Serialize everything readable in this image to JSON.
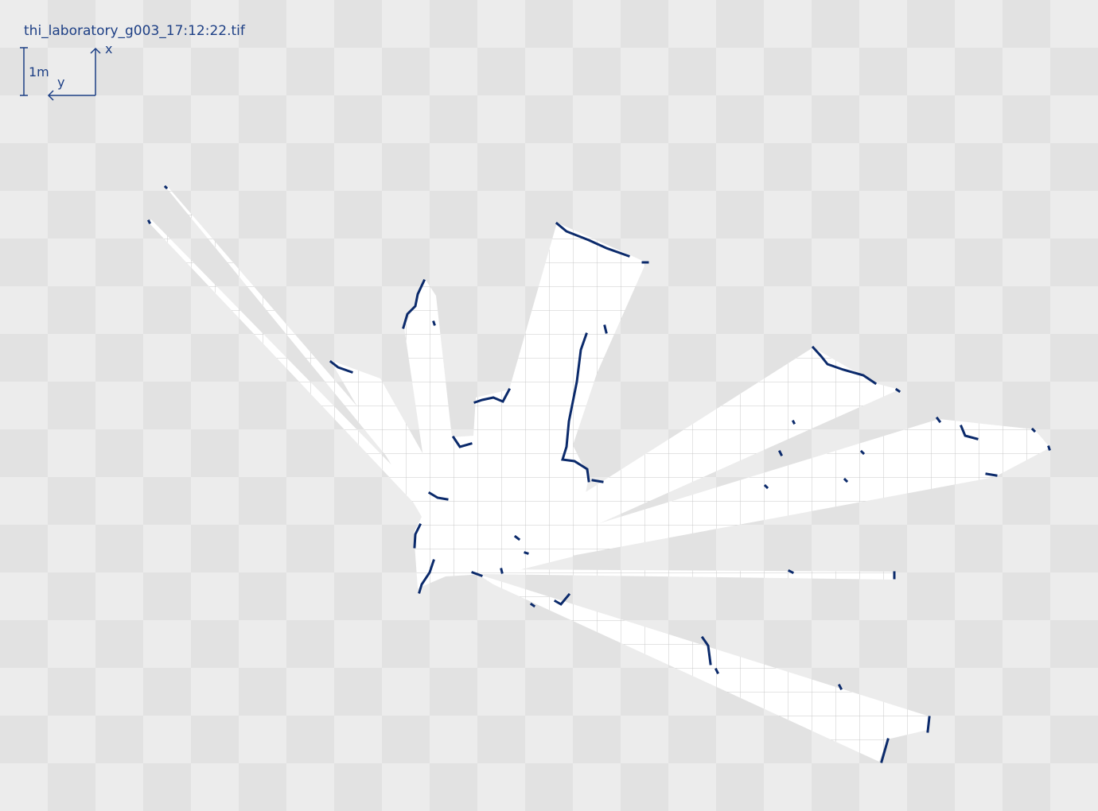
{
  "map": {
    "file_name": "thi_laboratory_g003_17:12:22.tif",
    "scale_label": "1m",
    "axis_x_label": "x",
    "axis_y_label": "y",
    "colors": {
      "free_space": "#ffffff",
      "grid": "#c8c8c8",
      "obstacle": "#0b2a6b",
      "annotation": "#1d3f85"
    }
  }
}
